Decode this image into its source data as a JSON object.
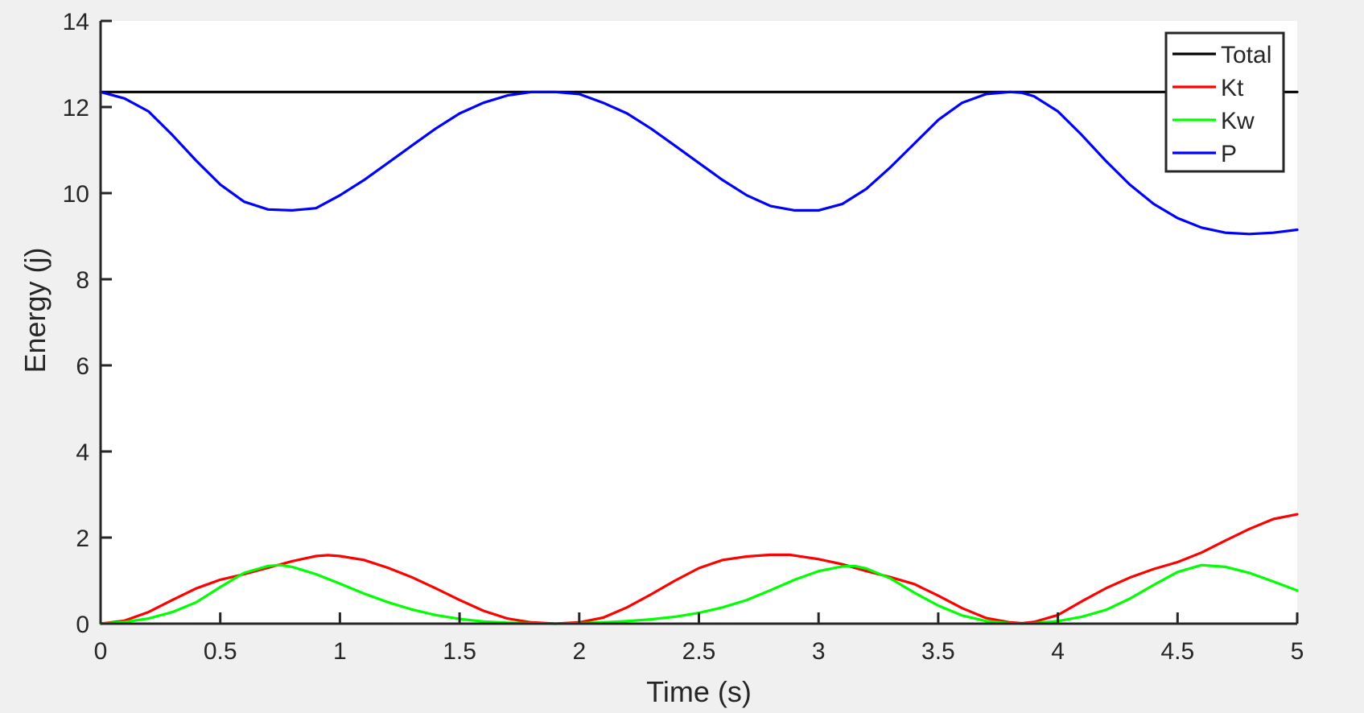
{
  "chart_data": {
    "type": "line",
    "title": "",
    "xlabel": "Time (s)",
    "ylabel": "Energy (j)",
    "xlim": [
      0,
      5
    ],
    "ylim": [
      0,
      14
    ],
    "xticks": [
      0,
      0.5,
      1,
      1.5,
      2,
      2.5,
      3,
      3.5,
      4,
      4.5,
      5
    ],
    "yticks": [
      0,
      2,
      4,
      6,
      8,
      10,
      12,
      14
    ],
    "xtick_labels": [
      "0",
      "0.5",
      "1",
      "1.5",
      "2",
      "2.5",
      "3",
      "3.5",
      "4",
      "4.5",
      "5"
    ],
    "ytick_labels": [
      "0",
      "2",
      "4",
      "6",
      "8",
      "10",
      "12",
      "14"
    ],
    "grid": false,
    "legend_position": "top-right",
    "series": [
      {
        "name": "Total",
        "color": "#000000",
        "x": [
          0,
          0.5,
          1,
          1.5,
          2,
          2.5,
          3,
          3.5,
          4,
          4.5,
          5
        ],
        "y": [
          12.35,
          12.35,
          12.35,
          12.35,
          12.35,
          12.35,
          12.35,
          12.35,
          12.35,
          12.35,
          12.35
        ]
      },
      {
        "name": "Kt",
        "color": "#ff0000",
        "x": [
          0,
          0.1,
          0.2,
          0.3,
          0.4,
          0.5,
          0.6,
          0.7,
          0.8,
          0.9,
          0.95,
          1.0,
          1.1,
          1.2,
          1.3,
          1.4,
          1.5,
          1.6,
          1.7,
          1.8,
          1.9,
          2.0,
          2.1,
          2.2,
          2.3,
          2.4,
          2.5,
          2.6,
          2.7,
          2.8,
          2.88,
          3.0,
          3.1,
          3.2,
          3.3,
          3.4,
          3.5,
          3.6,
          3.7,
          3.8,
          3.85,
          3.9,
          4.0,
          4.1,
          4.2,
          4.3,
          4.4,
          4.5,
          4.6,
          4.7,
          4.8,
          4.9,
          5.0
        ],
        "y": [
          0,
          0.07,
          0.27,
          0.55,
          0.82,
          1.02,
          1.15,
          1.3,
          1.45,
          1.57,
          1.59,
          1.57,
          1.48,
          1.3,
          1.08,
          0.82,
          0.55,
          0.3,
          0.12,
          0.03,
          0,
          0.03,
          0.14,
          0.38,
          0.68,
          1.0,
          1.29,
          1.48,
          1.56,
          1.6,
          1.6,
          1.5,
          1.38,
          1.22,
          1.08,
          0.92,
          0.65,
          0.36,
          0.13,
          0.03,
          0.01,
          0.04,
          0.2,
          0.52,
          0.82,
          1.07,
          1.27,
          1.43,
          1.65,
          1.93,
          2.2,
          2.43,
          2.54
        ]
      },
      {
        "name": "Kw",
        "color": "#00ff00",
        "x": [
          0,
          0.1,
          0.2,
          0.3,
          0.4,
          0.5,
          0.6,
          0.7,
          0.75,
          0.8,
          0.9,
          1.0,
          1.1,
          1.2,
          1.3,
          1.4,
          1.5,
          1.6,
          1.7,
          1.8,
          1.9,
          2.0,
          2.1,
          2.2,
          2.3,
          2.4,
          2.5,
          2.6,
          2.7,
          2.8,
          2.9,
          3.0,
          3.1,
          3.15,
          3.2,
          3.3,
          3.4,
          3.5,
          3.6,
          3.7,
          3.8,
          3.85,
          3.9,
          4.0,
          4.1,
          4.2,
          4.3,
          4.4,
          4.5,
          4.6,
          4.7,
          4.8,
          4.9,
          5.0
        ],
        "y": [
          0,
          0.04,
          0.12,
          0.27,
          0.5,
          0.85,
          1.18,
          1.34,
          1.36,
          1.32,
          1.15,
          0.93,
          0.7,
          0.5,
          0.33,
          0.2,
          0.11,
          0.05,
          0.02,
          0.01,
          0,
          0.01,
          0.03,
          0.06,
          0.1,
          0.16,
          0.25,
          0.38,
          0.55,
          0.78,
          1.02,
          1.22,
          1.33,
          1.34,
          1.28,
          1.05,
          0.72,
          0.42,
          0.19,
          0.06,
          0.01,
          0,
          0.01,
          0.06,
          0.16,
          0.32,
          0.58,
          0.9,
          1.2,
          1.36,
          1.32,
          1.18,
          0.98,
          0.77
        ]
      },
      {
        "name": "P",
        "color": "#0000ff",
        "x": [
          0,
          0.1,
          0.2,
          0.3,
          0.4,
          0.5,
          0.6,
          0.7,
          0.8,
          0.9,
          1.0,
          1.1,
          1.2,
          1.3,
          1.4,
          1.5,
          1.6,
          1.7,
          1.8,
          1.9,
          2.0,
          2.1,
          2.2,
          2.3,
          2.4,
          2.5,
          2.6,
          2.7,
          2.8,
          2.9,
          3.0,
          3.1,
          3.2,
          3.3,
          3.4,
          3.5,
          3.6,
          3.7,
          3.8,
          3.85,
          3.9,
          4.0,
          4.1,
          4.2,
          4.3,
          4.4,
          4.5,
          4.6,
          4.7,
          4.8,
          4.9,
          5.0
        ],
        "y": [
          12.35,
          12.2,
          11.9,
          11.35,
          10.75,
          10.2,
          9.8,
          9.62,
          9.6,
          9.65,
          9.95,
          10.3,
          10.7,
          11.1,
          11.5,
          11.85,
          12.1,
          12.27,
          12.35,
          12.35,
          12.3,
          12.1,
          11.85,
          11.5,
          11.1,
          10.7,
          10.3,
          9.95,
          9.7,
          9.6,
          9.6,
          9.75,
          10.1,
          10.6,
          11.15,
          11.7,
          12.1,
          12.3,
          12.35,
          12.33,
          12.25,
          11.9,
          11.35,
          10.75,
          10.2,
          9.75,
          9.42,
          9.2,
          9.08,
          9.05,
          9.08,
          9.15
        ]
      }
    ]
  }
}
